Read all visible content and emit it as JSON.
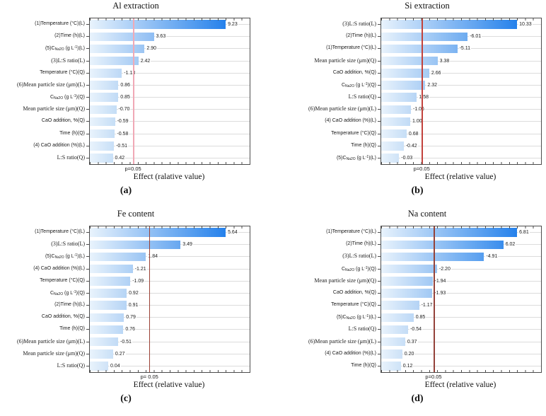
{
  "figure": {
    "background": "#ffffff",
    "bar_gradient_start": "#e9f3fc",
    "bar_gradient_end": "#1e7deb",
    "gridline_color": "#dcdcdc",
    "frame_color": "#4d4d4d",
    "subscript_marker": "~",
    "superscript_marker": "^"
  },
  "chart_data": [
    {
      "type": "bar",
      "orientation": "horizontal",
      "title": "Al extraction",
      "xlabel": "Effect (ralative value)",
      "ylabel": "",
      "caption": "(a)",
      "p_label": "p=0.05",
      "p_critical_effect": 2.0,
      "p_line_color": "#f0a9b6",
      "p_line_width": 2,
      "grid": true,
      "categories": [
        "(1)Temperature (°C)(L)",
        "(2)Time (h)(L)",
        "(5)C~Na2O~ (g L^-1^)(L)",
        "(3)L:S ratio(L)",
        "Temperature (°C)(Q)",
        "(6)Mean particle size (μm)(L)",
        "C~Na2O~ (g L^-1^)(Q)",
        "Mean particle size (μm)(Q)",
        "CaO addition, %(Q)",
        "Time (h)(Q)",
        "(4) CaO addition (%)(L)",
        "L:S ratio(Q)"
      ],
      "values": [
        9.23,
        3.63,
        2.9,
        2.42,
        -1.13,
        0.86,
        0.85,
        -0.7,
        -0.59,
        -0.58,
        -0.51,
        0.42
      ],
      "value_labels": [
        "9.23",
        "3.63",
        "2.90",
        "2.42",
        "-1.13",
        "0.86",
        "0.85",
        "-0.70",
        "-0.59",
        "-0.58",
        "-0.51",
        "0.42"
      ],
      "serif_rows": [
        3,
        5,
        7,
        11
      ]
    },
    {
      "type": "bar",
      "orientation": "horizontal",
      "title": "Si extraction",
      "xlabel": "Effect (relative value)",
      "ylabel": "",
      "caption": "(b)",
      "p_label": "p=0.05",
      "p_critical_effect": 2.0,
      "p_line_color": "#c2423c",
      "p_line_width": 1.5,
      "grid": true,
      "categories": [
        "(3)L:S ratio(L)",
        "(2)Time (h)(L)",
        "(1)Temperature (°C)(L)",
        "Mean particle size (μm)(Q)",
        "CaO addition, %(Q)",
        "C~Na2O~ (g L^-1^)(Q)",
        "L:S ratio(Q)",
        "(6)Mean particle size (μm)(L)",
        "(4) CaO addition (%)(L)",
        "Temperature (°C)(Q)",
        "Time (h)(Q)",
        "(5)C~Na2O~ (g L^-1^)(L)"
      ],
      "values": [
        10.33,
        -6.01,
        -5.11,
        3.38,
        2.66,
        2.32,
        1.58,
        -1.06,
        1.0,
        0.68,
        -0.42,
        -0.03
      ],
      "value_labels": [
        "10.33",
        "-6.01",
        "-5.11",
        "3.38",
        "2.66",
        "2.32",
        "1.58",
        "-1.06",
        "1.00",
        "0.68",
        "-0.42",
        "-0.03"
      ],
      "serif_rows": [
        0,
        3,
        6,
        7
      ]
    },
    {
      "type": "bar",
      "orientation": "horizontal",
      "title": "Fe content",
      "xlabel": "Effect (relative value)",
      "ylabel": "",
      "caption": "(c)",
      "p_label": "p= 0.05",
      "p_critical_effect": 2.0,
      "p_line_color": "#9a4034",
      "p_line_width": 1,
      "grid": true,
      "categories": [
        "(1)Temperature (°C)(L)",
        "(3)L:S ratio(L)",
        "(5)C~Na2O~ (g L^-1^)(L)",
        "(4) CaO addition (%)(L)",
        "Temperature (°C)(Q)",
        "C~Na2O~ (g L^-1^)(Q)",
        "(2)Time (h)(L)",
        "CaO addition, %(Q)",
        "Time (h)(Q)",
        "(6)Mean particle size (μm)(L)",
        "Mean particle size (μm)(Q)",
        "L:S ratio(Q)"
      ],
      "values": [
        5.64,
        3.49,
        1.84,
        -1.21,
        -1.09,
        0.92,
        0.91,
        0.79,
        0.76,
        -0.51,
        0.27,
        0.04
      ],
      "value_labels": [
        "5.64",
        "3.49",
        "1.84",
        "-1.21",
        "-1.09",
        "0.92",
        "0.91",
        "0.79",
        "0.76",
        "-0.51",
        "0.27",
        "0.04"
      ],
      "serif_rows": [
        1,
        9,
        10,
        11
      ]
    },
    {
      "type": "bar",
      "orientation": "horizontal",
      "title": "Na content",
      "xlabel": "Effect (relative value)",
      "ylabel": "",
      "caption": "(d)",
      "p_label": "p=0.05",
      "p_critical_effect": 2.0,
      "p_line_color": "#94423a",
      "p_line_width": 1.5,
      "grid": true,
      "categories": [
        "(1)Temperature (°C)(L)",
        "(2)Time (h)(L)",
        "(3)L:S ratio(L)",
        "C~Na2O~ (g L^-1^)(Q)",
        "Mean particle size (μm)(Q)",
        "CaO addition, %(Q)",
        "Temperature (°C)(Q)",
        "(5)C~Na2O~ (g L^-1^)(L)",
        "L:S ratio(Q)",
        "(6)Mean particle size (μm)(L)",
        "(4) CaO addition (%)(L)",
        "Time (h)(Q)"
      ],
      "values": [
        6.81,
        6.02,
        -4.91,
        -2.2,
        -1.94,
        -1.93,
        -1.17,
        0.85,
        -0.54,
        0.37,
        0.2,
        0.12
      ],
      "value_labels": [
        "6.81",
        "6.02",
        "-4.91",
        "-2.20",
        "-1.94",
        "-1.93",
        "-1.17",
        "0.85",
        "-0.54",
        "0.37",
        "0.20",
        "0.12"
      ],
      "serif_rows": [
        2,
        4,
        8,
        9
      ]
    }
  ]
}
